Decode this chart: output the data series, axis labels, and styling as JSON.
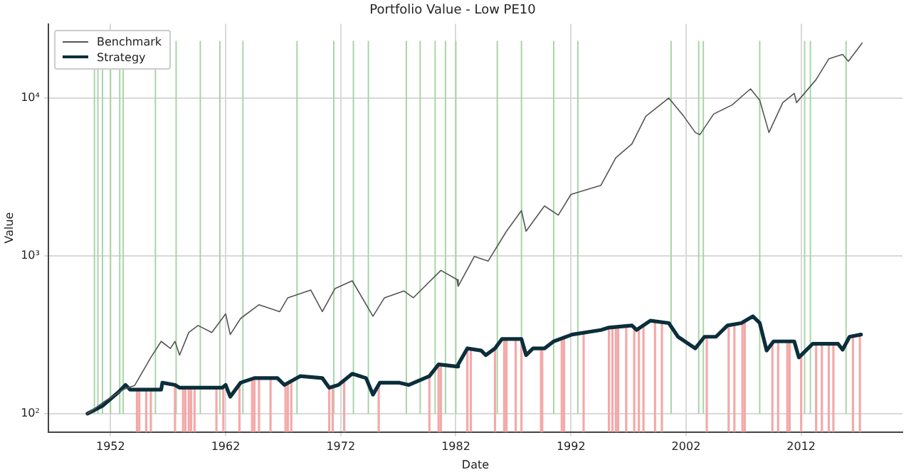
{
  "chart_data": {
    "type": "line",
    "title": "Portfolio Value - Low PE10",
    "xlabel": "Date",
    "ylabel": "Value",
    "log": "y",
    "grid": true,
    "legend": "top left",
    "marker": "none",
    "line_style": "solid",
    "xlim": [
      1946.6,
      2020.8
    ],
    "xticks": [
      1952,
      1962,
      1972,
      1982,
      1992,
      2002,
      2012
    ],
    "ylim": [
      76.6,
      29500
    ],
    "yticks": [
      {
        "value": 100,
        "label": "10²"
      },
      {
        "value": 1000,
        "label": "10³"
      },
      {
        "value": 10000,
        "label": "10⁴"
      }
    ],
    "series": [
      {
        "name": "Benchmark",
        "color": "#555555",
        "x": [
          1950.0,
          1951.5,
          1953.1,
          1954.1,
          1955.5,
          1956.4,
          1957.2,
          1957.6,
          1958.0,
          1958.8,
          1959.6,
          1960.8,
          1962.0,
          1962.4,
          1963.3,
          1964.9,
          1966.7,
          1967.4,
          1969.4,
          1970.4,
          1971.5,
          1973.0,
          1974.8,
          1975.8,
          1977.5,
          1978.3,
          1980.7,
          1982.1,
          1982.2,
          1983.6,
          1984.8,
          1986.4,
          1987.7,
          1988.1,
          1989.7,
          1990.9,
          1992.0,
          1994.6,
          1995.9,
          1997.3,
          1998.5,
          2000.5,
          2001.8,
          2002.8,
          2003.2,
          2004.4,
          2006.0,
          2007.6,
          2008.4,
          2009.2,
          2010.4,
          2011.4,
          2011.6,
          2013.3,
          2014.4,
          2015.6,
          2016.1,
          2017.3
        ],
        "values": [
          100,
          120,
          142,
          151,
          227,
          287,
          259,
          287,
          235,
          327,
          362,
          327,
          429,
          317,
          401,
          490,
          443,
          542,
          607,
          443,
          620,
          695,
          414,
          542,
          599,
          542,
          809,
          708,
          641,
          991,
          926,
          1432,
          1935,
          1432,
          2070,
          1811,
          2451,
          2797,
          4188,
          5118,
          7660,
          10000,
          7660,
          6050,
          5860,
          7920,
          9040,
          11430,
          9680,
          6050,
          9350,
          10700,
          9350,
          13100,
          17700,
          18900,
          17100,
          22300
        ]
      },
      {
        "name": "Strategy",
        "color": "#0b2e3b",
        "x": [
          1950.0,
          1951.3,
          1952.7,
          1953.3,
          1953.7,
          1956.4,
          1956.5,
          1957.6,
          1958.0,
          1961.7,
          1962.0,
          1962.4,
          1963.3,
          1964.5,
          1966.5,
          1967.1,
          1968.5,
          1970.4,
          1971.0,
          1971.8,
          1973.0,
          1974.2,
          1974.8,
          1975.4,
          1977.1,
          1977.9,
          1979.7,
          1980.5,
          1982.1,
          1982.2,
          1983.0,
          1984.2,
          1984.6,
          1985.4,
          1986.0,
          1987.7,
          1988.1,
          1988.7,
          1989.7,
          1990.5,
          1992.1,
          1994.6,
          1995.3,
          1997.3,
          1997.7,
          1998.9,
          2000.5,
          2001.3,
          2002.8,
          2003.6,
          2004.6,
          2005.6,
          2006.8,
          2007.8,
          2008.4,
          2009.0,
          2009.6,
          2011.4,
          2011.8,
          2013.0,
          2015.2,
          2015.6,
          2016.2,
          2017.2
        ],
        "values": [
          100,
          112,
          137,
          152,
          142,
          142,
          157,
          152,
          146,
          146,
          152,
          128,
          157,
          168,
          168,
          152,
          173,
          168,
          146,
          152,
          179,
          168,
          132,
          157,
          157,
          152,
          173,
          205,
          199,
          205,
          259,
          251,
          235,
          259,
          297,
          297,
          235,
          259,
          259,
          287,
          317,
          339,
          351,
          362,
          339,
          388,
          375,
          307,
          259,
          307,
          307,
          362,
          375,
          414,
          375,
          251,
          287,
          287,
          227,
          277,
          277,
          254,
          307,
          317
        ]
      }
    ],
    "ref_lines": [
      {
        "axis": "x",
        "value": 1950.6,
        "color": "#a8d5a8"
      },
      {
        "axis": "x",
        "value": 1950.9,
        "color": "#a8d5a8"
      },
      {
        "axis": "x",
        "value": 1951.3,
        "color": "#a8d5a8"
      },
      {
        "axis": "x",
        "value": 1952.0,
        "color": "#a8d5a8"
      },
      {
        "axis": "x",
        "value": 1952.8,
        "color": "#a8d5a8"
      },
      {
        "axis": "x",
        "value": 1953.1,
        "color": "#a8d5a8"
      },
      {
        "axis": "x",
        "value": 1955.9,
        "color": "#a8d5a8"
      },
      {
        "axis": "x",
        "value": 1957.7,
        "color": "#a8d5a8"
      },
      {
        "axis": "x",
        "value": 1959.8,
        "color": "#a8d5a8"
      },
      {
        "axis": "x",
        "value": 1961.5,
        "color": "#a8d5a8"
      },
      {
        "axis": "x",
        "value": 1963.5,
        "color": "#a8d5a8"
      },
      {
        "axis": "x",
        "value": 1968.2,
        "color": "#a8d5a8"
      },
      {
        "axis": "x",
        "value": 1971.4,
        "color": "#a8d5a8"
      },
      {
        "axis": "x",
        "value": 1973.1,
        "color": "#a8d5a8"
      },
      {
        "axis": "x",
        "value": 1974.4,
        "color": "#a8d5a8"
      },
      {
        "axis": "x",
        "value": 1977.7,
        "color": "#a8d5a8"
      },
      {
        "axis": "x",
        "value": 1978.9,
        "color": "#a8d5a8"
      },
      {
        "axis": "x",
        "value": 1980.2,
        "color": "#a8d5a8"
      },
      {
        "axis": "x",
        "value": 1981.1,
        "color": "#a8d5a8"
      },
      {
        "axis": "x",
        "value": 1982.0,
        "color": "#a8d5a8"
      },
      {
        "axis": "x",
        "value": 1985.6,
        "color": "#a8d5a8"
      },
      {
        "axis": "x",
        "value": 1987.7,
        "color": "#a8d5a8"
      },
      {
        "axis": "x",
        "value": 1990.5,
        "color": "#a8d5a8"
      },
      {
        "axis": "x",
        "value": 1992.6,
        "color": "#a8d5a8"
      },
      {
        "axis": "x",
        "value": 2000.7,
        "color": "#a8d5a8"
      },
      {
        "axis": "x",
        "value": 2003.1,
        "color": "#a8d5a8"
      },
      {
        "axis": "x",
        "value": 2003.5,
        "color": "#a8d5a8"
      },
      {
        "axis": "x",
        "value": 2008.4,
        "color": "#a8d5a8"
      },
      {
        "axis": "x",
        "value": 2012.3,
        "color": "#a8d5a8"
      },
      {
        "axis": "x",
        "value": 2012.8,
        "color": "#a8d5a8"
      },
      {
        "axis": "x",
        "value": 2015.9,
        "color": "#a8d5a8"
      },
      {
        "axis": "x",
        "value": 1954.3,
        "color": "#f4a9a9"
      },
      {
        "axis": "x",
        "value": 1954.5,
        "color": "#f4a9a9"
      },
      {
        "axis": "x",
        "value": 1955.1,
        "color": "#f4a9a9"
      },
      {
        "axis": "x",
        "value": 1955.5,
        "color": "#f4a9a9"
      },
      {
        "axis": "x",
        "value": 1957.6,
        "color": "#f4a9a9"
      },
      {
        "axis": "x",
        "value": 1958.3,
        "color": "#f4a9a9"
      },
      {
        "axis": "x",
        "value": 1958.5,
        "color": "#f4a9a9"
      },
      {
        "axis": "x",
        "value": 1958.8,
        "color": "#f4a9a9"
      },
      {
        "axis": "x",
        "value": 1959.0,
        "color": "#f4a9a9"
      },
      {
        "axis": "x",
        "value": 1959.3,
        "color": "#f4a9a9"
      },
      {
        "axis": "x",
        "value": 1961.2,
        "color": "#f4a9a9"
      },
      {
        "axis": "x",
        "value": 1961.8,
        "color": "#f4a9a9"
      },
      {
        "axis": "x",
        "value": 1963.2,
        "color": "#f4a9a9"
      },
      {
        "axis": "x",
        "value": 1964.3,
        "color": "#f4a9a9"
      },
      {
        "axis": "x",
        "value": 1964.5,
        "color": "#f4a9a9"
      },
      {
        "axis": "x",
        "value": 1964.9,
        "color": "#f4a9a9"
      },
      {
        "axis": "x",
        "value": 1965.9,
        "color": "#f4a9a9"
      },
      {
        "axis": "x",
        "value": 1967.2,
        "color": "#f4a9a9"
      },
      {
        "axis": "x",
        "value": 1967.4,
        "color": "#f4a9a9"
      },
      {
        "axis": "x",
        "value": 1967.7,
        "color": "#f4a9a9"
      },
      {
        "axis": "x",
        "value": 1971.0,
        "color": "#f4a9a9"
      },
      {
        "axis": "x",
        "value": 1971.3,
        "color": "#f4a9a9"
      },
      {
        "axis": "x",
        "value": 1972.3,
        "color": "#f4a9a9"
      },
      {
        "axis": "x",
        "value": 1975.3,
        "color": "#f4a9a9"
      },
      {
        "axis": "x",
        "value": 1979.7,
        "color": "#f4a9a9"
      },
      {
        "axis": "x",
        "value": 1980.5,
        "color": "#f4a9a9"
      },
      {
        "axis": "x",
        "value": 1980.7,
        "color": "#f4a9a9"
      },
      {
        "axis": "x",
        "value": 1983.0,
        "color": "#f4a9a9"
      },
      {
        "axis": "x",
        "value": 1983.3,
        "color": "#f4a9a9"
      },
      {
        "axis": "x",
        "value": 1985.4,
        "color": "#f4a9a9"
      },
      {
        "axis": "x",
        "value": 1986.2,
        "color": "#f4a9a9"
      },
      {
        "axis": "x",
        "value": 1986.4,
        "color": "#f4a9a9"
      },
      {
        "axis": "x",
        "value": 1987.2,
        "color": "#f4a9a9"
      },
      {
        "axis": "x",
        "value": 1987.7,
        "color": "#f4a9a9"
      },
      {
        "axis": "x",
        "value": 1989.4,
        "color": "#f4a9a9"
      },
      {
        "axis": "x",
        "value": 1989.5,
        "color": "#f4a9a9"
      },
      {
        "axis": "x",
        "value": 1991.2,
        "color": "#f4a9a9"
      },
      {
        "axis": "x",
        "value": 1991.4,
        "color": "#f4a9a9"
      },
      {
        "axis": "x",
        "value": 1993.1,
        "color": "#f4a9a9"
      },
      {
        "axis": "x",
        "value": 1995.3,
        "color": "#f4a9a9"
      },
      {
        "axis": "x",
        "value": 1995.6,
        "color": "#f4a9a9"
      },
      {
        "axis": "x",
        "value": 1995.9,
        "color": "#f4a9a9"
      },
      {
        "axis": "x",
        "value": 1996.1,
        "color": "#f4a9a9"
      },
      {
        "axis": "x",
        "value": 1996.8,
        "color": "#f4a9a9"
      },
      {
        "axis": "x",
        "value": 1997.5,
        "color": "#f4a9a9"
      },
      {
        "axis": "x",
        "value": 1997.9,
        "color": "#f4a9a9"
      },
      {
        "axis": "x",
        "value": 1998.3,
        "color": "#f4a9a9"
      },
      {
        "axis": "x",
        "value": 1999.3,
        "color": "#f4a9a9"
      },
      {
        "axis": "x",
        "value": 1999.9,
        "color": "#f4a9a9"
      },
      {
        "axis": "x",
        "value": 2003.8,
        "color": "#f4a9a9"
      },
      {
        "axis": "x",
        "value": 2005.7,
        "color": "#f4a9a9"
      },
      {
        "axis": "x",
        "value": 2006.2,
        "color": "#f4a9a9"
      },
      {
        "axis": "x",
        "value": 2006.9,
        "color": "#f4a9a9"
      },
      {
        "axis": "x",
        "value": 2007.1,
        "color": "#f4a9a9"
      },
      {
        "axis": "x",
        "value": 2009.5,
        "color": "#f4a9a9"
      },
      {
        "axis": "x",
        "value": 2010.0,
        "color": "#f4a9a9"
      },
      {
        "axis": "x",
        "value": 2010.8,
        "color": "#f4a9a9"
      },
      {
        "axis": "x",
        "value": 2011.0,
        "color": "#f4a9a9"
      },
      {
        "axis": "x",
        "value": 2012.0,
        "color": "#f4a9a9"
      },
      {
        "axis": "x",
        "value": 2013.3,
        "color": "#f4a9a9"
      },
      {
        "axis": "x",
        "value": 2013.8,
        "color": "#f4a9a9"
      },
      {
        "axis": "x",
        "value": 2014.4,
        "color": "#f4a9a9"
      },
      {
        "axis": "x",
        "value": 2014.8,
        "color": "#f4a9a9"
      },
      {
        "axis": "x",
        "value": 2016.5,
        "color": "#f4a9a9"
      },
      {
        "axis": "x",
        "value": 2017.1,
        "color": "#f4a9a9"
      }
    ]
  }
}
